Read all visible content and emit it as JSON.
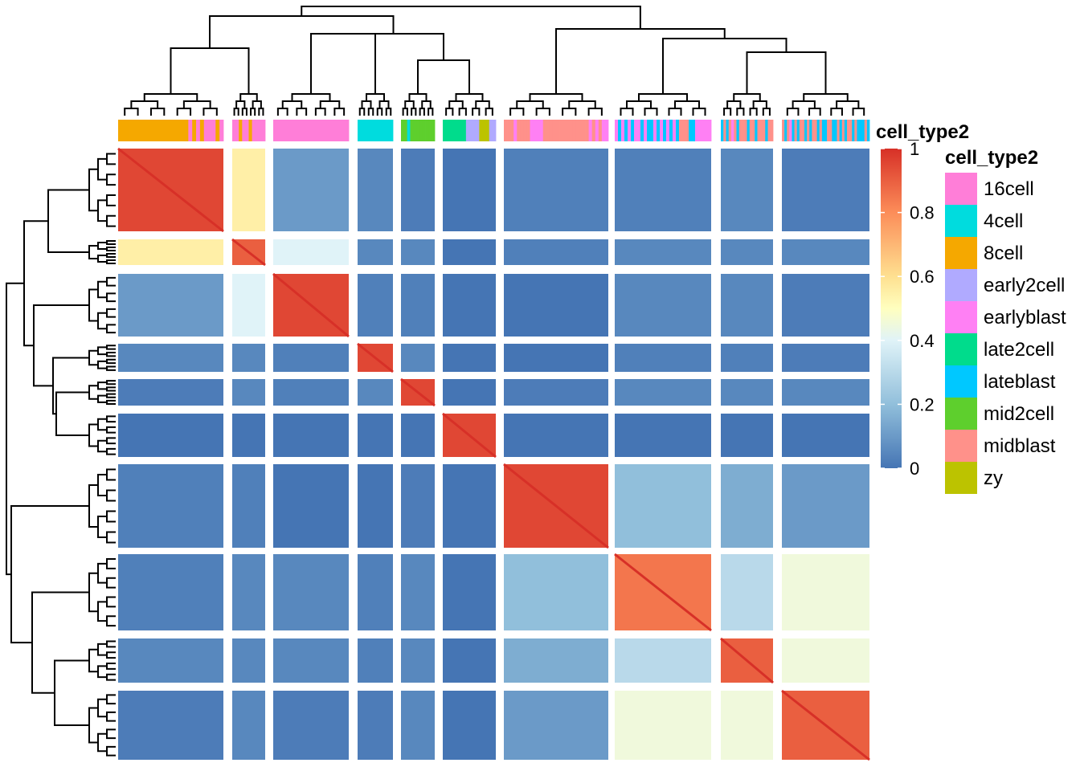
{
  "chart_data": {
    "type": "heatmap",
    "annotation": {
      "name": "cell_type2",
      "column_groups": [
        [
          "8cell",
          "8cell",
          "8cell",
          "8cell",
          "8cell",
          "8cell",
          "8cell",
          "8cell",
          "8cell",
          "8cell",
          "8cell",
          "8cell",
          "8cell",
          "8cell",
          "8cell",
          "8cell",
          "8cell",
          "8cell",
          "16cell",
          "8cell",
          "16cell",
          "8cell",
          "16cell",
          "16cell",
          "16cell",
          "8cell",
          "16cell"
        ],
        [
          "16cell",
          "16cell",
          "8cell",
          "16cell",
          "16cell",
          "8cell",
          "16cell",
          "16cell",
          "16cell",
          "16cell"
        ],
        [
          "16cell",
          "16cell",
          "16cell",
          "16cell",
          "16cell",
          "16cell",
          "16cell",
          "16cell",
          "16cell",
          "16cell",
          "16cell",
          "16cell",
          "16cell",
          "16cell",
          "16cell",
          "16cell",
          "16cell",
          "16cell",
          "16cell",
          "16cell",
          "16cell",
          "16cell",
          "16cell",
          "16cell"
        ],
        [
          "4cell",
          "4cell",
          "4cell",
          "4cell",
          "4cell",
          "4cell",
          "4cell",
          "4cell",
          "4cell",
          "4cell",
          "4cell",
          "4cell"
        ],
        [
          "mid2cell",
          "mid2cell",
          "4cell",
          "mid2cell",
          "mid2cell",
          "mid2cell",
          "mid2cell",
          "mid2cell",
          "mid2cell",
          "mid2cell",
          "mid2cell"
        ],
        [
          "late2cell",
          "late2cell",
          "late2cell",
          "late2cell",
          "late2cell",
          "late2cell",
          "late2cell",
          "early2cell",
          "early2cell",
          "early2cell",
          "early2cell",
          "zy",
          "zy",
          "zy",
          "early2cell",
          "early2cell"
        ],
        [
          "midblast",
          "midblast",
          "midblast",
          "earlyblast",
          "midblast",
          "midblast",
          "midblast",
          "midblast",
          "earlyblast",
          "earlyblast",
          "earlyblast",
          "earlyblast",
          "midblast",
          "midblast",
          "midblast",
          "midblast",
          "midblast",
          "midblast",
          "midblast",
          "midblast",
          "midblast",
          "midblast",
          "midblast",
          "midblast",
          "midblast",
          "midblast",
          "earlyblast",
          "midblast",
          "earlyblast",
          "midblast",
          "earlyblast",
          "earlyblast"
        ],
        [
          "earlyblast",
          "lateblast",
          "earlyblast",
          "lateblast",
          "earlyblast",
          "lateblast",
          "earlyblast",
          "earlyblast",
          "lateblast",
          "earlyblast",
          "lateblast",
          "lateblast",
          "earlyblast",
          "lateblast",
          "earlyblast",
          "lateblast",
          "earlyblast",
          "lateblast",
          "earlyblast",
          "lateblast",
          "midblast",
          "midblast",
          "midblast",
          "lateblast",
          "lateblast",
          "earlyblast",
          "earlyblast",
          "earlyblast",
          "earlyblast",
          "earlyblast"
        ],
        [
          "lateblast",
          "midblast",
          "lateblast",
          "midblast",
          "earlyblast",
          "midblast",
          "lateblast",
          "midblast",
          "midblast",
          "midblast",
          "lateblast",
          "midblast",
          "midblast",
          "lateblast",
          "midblast",
          "midblast",
          "midblast",
          "lateblast",
          "midblast",
          "midblast"
        ],
        [
          "midblast",
          "lateblast",
          "midblast",
          "earlyblast",
          "lateblast",
          "midblast",
          "lateblast",
          "midblast",
          "midblast",
          "lateblast",
          "midblast",
          "lateblast",
          "midblast",
          "midblast",
          "lateblast",
          "midblast",
          "lateblast",
          "lateblast",
          "midblast",
          "midblast",
          "lateblast",
          "lateblast",
          "midblast",
          "lateblast",
          "midblast",
          "lateblast",
          "midblast",
          "midblast",
          "lateblast",
          "midblast",
          "lateblast",
          "lateblast",
          "lateblast",
          "midblast",
          "lateblast"
        ]
      ],
      "levels": [
        "16cell",
        "4cell",
        "8cell",
        "early2cell",
        "earlyblast",
        "late2cell",
        "lateblast",
        "mid2cell",
        "midblast",
        "zy"
      ],
      "colors": {
        "16cell": "#ff7ed8",
        "4cell": "#00dcde",
        "8cell": "#f5a800",
        "early2cell": "#b0aaff",
        "earlyblast": "#ff80f4",
        "late2cell": "#00dc8c",
        "lateblast": "#00c8ff",
        "mid2cell": "#5ecf2d",
        "midblast": "#ff918a",
        "zy": "#bcc300"
      }
    },
    "clusters": [
      {
        "sizes": [
          27,
          10,
          24,
          12,
          11,
          16,
          32,
          30,
          20,
          35
        ]
      }
    ],
    "block_correlation": [
      [
        0.95,
        0.55,
        0.1,
        0.05,
        0.02,
        0.0,
        0.03,
        0.03,
        0.05,
        0.02
      ],
      [
        0.55,
        0.9,
        0.4,
        0.05,
        0.05,
        0.0,
        0.03,
        0.05,
        0.05,
        0.05
      ],
      [
        0.1,
        0.4,
        0.95,
        0.03,
        0.03,
        0.0,
        0.0,
        0.05,
        0.05,
        0.02
      ],
      [
        0.05,
        0.05,
        0.03,
        0.95,
        0.05,
        0.0,
        0.0,
        0.03,
        0.03,
        0.02
      ],
      [
        0.02,
        0.05,
        0.03,
        0.05,
        0.95,
        0.0,
        0.02,
        0.05,
        0.05,
        0.05
      ],
      [
        0.0,
        0.0,
        0.0,
        0.0,
        0.0,
        0.95,
        0.0,
        0.0,
        0.0,
        0.0
      ],
      [
        0.03,
        0.03,
        0.0,
        0.0,
        0.02,
        0.0,
        0.95,
        0.2,
        0.15,
        0.1
      ],
      [
        0.03,
        0.05,
        0.05,
        0.03,
        0.05,
        0.0,
        0.2,
        0.85,
        0.3,
        0.45
      ],
      [
        0.05,
        0.05,
        0.05,
        0.03,
        0.05,
        0.0,
        0.15,
        0.3,
        0.9,
        0.45
      ],
      [
        0.02,
        0.05,
        0.02,
        0.02,
        0.05,
        0.0,
        0.1,
        0.45,
        0.45,
        0.9
      ]
    ],
    "color_scale": {
      "domain": [
        0,
        0.2,
        0.4,
        0.5,
        0.6,
        0.8,
        1
      ],
      "colors": [
        "#4575b4",
        "#91bfdb",
        "#e0f3f8",
        "#ffffbf",
        "#fee090",
        "#fc8d59",
        "#d73027"
      ],
      "ticks": [
        "0",
        "0.2",
        "0.4",
        "0.6",
        "0.8",
        "1"
      ]
    },
    "legend": {
      "heatmap_title": "cell_type2",
      "annotation_title": "cell_type2",
      "placement": "right"
    }
  }
}
